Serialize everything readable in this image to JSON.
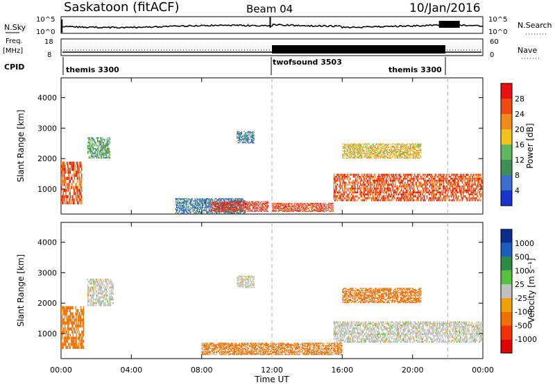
{
  "header": {
    "title": "Saskatoon (fitACF)",
    "beam": "Beam 04",
    "date": "10/Jan/2016"
  },
  "sky_panel": {
    "left_label": "N.Sky",
    "left_ticks": [
      "10^5",
      "10^0"
    ],
    "right_ticks": [
      "10^5",
      "10^0"
    ],
    "right_label": "N.Search",
    "right_legend_line": "dotted"
  },
  "freq_panel": {
    "left_label_line1": "Freq.",
    "left_label_line2": "[MHz]",
    "left_ticks": [
      "18",
      "8"
    ],
    "right_ticks": [
      "60",
      "0"
    ],
    "right_label": "Nave",
    "right_legend_line": "dotted"
  },
  "cpid": {
    "label": "CPID",
    "segments": [
      {
        "name": "themis 3300",
        "start_hour": 0,
        "end_hour": 12
      },
      {
        "name": "twofsound 3503",
        "start_hour": 12,
        "end_hour": 22
      },
      {
        "name": "themis 3300",
        "start_hour": 22,
        "end_hour": 24
      }
    ]
  },
  "colors": {
    "power_scale": [
      "#1a33cc",
      "#3a6fd0",
      "#3f8f55",
      "#5fb65f",
      "#f2c21a",
      "#f28a1a",
      "#f04a10",
      "#e81010"
    ],
    "velocity_scale": [
      "#0a2c8c",
      "#1a5cc0",
      "#2e8a3e",
      "#55c040",
      "#c0c0c0",
      "#f0a000",
      "#f07000",
      "#f03000",
      "#e00000"
    ],
    "noise_line": "#000000",
    "dashed_marker": "#b0b0b0"
  },
  "chart_data": [
    {
      "type": "heatmap",
      "name": "Power range-time intensity",
      "xlabel": "",
      "ylabel": "Slant Range [km]",
      "ylim": [
        180,
        4650
      ],
      "yticks": [
        "1000",
        "2000",
        "3000",
        "4000"
      ],
      "colorbar_label": "Power [dB]",
      "colorbar_ticks": [
        "4",
        "8",
        "12",
        "16",
        "20",
        "24",
        "28"
      ],
      "clim": [
        0,
        32
      ],
      "grid": false,
      "regions": [
        {
          "t": [
            0.0,
            1.2
          ],
          "r": [
            500,
            1900
          ],
          "level": 0.85
        },
        {
          "t": [
            1.5,
            2.8
          ],
          "r": [
            2000,
            2700
          ],
          "level": 0.35
        },
        {
          "t": [
            6.5,
            10.5
          ],
          "r": [
            200,
            700
          ],
          "level": 0.2
        },
        {
          "t": [
            8.5,
            11.8
          ],
          "r": [
            250,
            600
          ],
          "level": 0.95
        },
        {
          "t": [
            12.0,
            15.5
          ],
          "r": [
            250,
            550
          ],
          "level": 0.9
        },
        {
          "t": [
            15.5,
            24.0
          ],
          "r": [
            600,
            1500
          ],
          "level": 0.85
        },
        {
          "t": [
            16.0,
            20.5
          ],
          "r": [
            2000,
            2500
          ],
          "level": 0.6
        },
        {
          "t": [
            10.0,
            11.0
          ],
          "r": [
            2500,
            2900
          ],
          "level": 0.2
        }
      ]
    },
    {
      "type": "heatmap",
      "name": "Line-of-sight velocity range-time intensity",
      "xlabel": "Time UT",
      "ylabel": "Slant Range [km]",
      "ylim": [
        180,
        4650
      ],
      "yticks": [
        "1000",
        "2000",
        "3000",
        "4000"
      ],
      "xticks": [
        "00:00",
        "04:00",
        "08:00",
        "12:00",
        "16:00",
        "20:00",
        "00:00"
      ],
      "colorbar_label": "Velocity [m s⁻¹]",
      "colorbar_ticks": [
        "1000",
        "500",
        "100",
        "25",
        "-25",
        "-100",
        "-500",
        "-1000"
      ],
      "clim": [
        -1000,
        1000
      ],
      "grid": false,
      "regions": [
        {
          "t": [
            0.0,
            1.3
          ],
          "r": [
            500,
            1900
          ],
          "level": -300
        },
        {
          "t": [
            1.5,
            3.0
          ],
          "r": [
            1900,
            2800
          ],
          "level": 0
        },
        {
          "t": [
            8.0,
            12.0
          ],
          "r": [
            300,
            700
          ],
          "level": -150
        },
        {
          "t": [
            12.0,
            16.0
          ],
          "r": [
            300,
            700
          ],
          "level": -150
        },
        {
          "t": [
            15.5,
            24.0
          ],
          "r": [
            700,
            1400
          ],
          "level": 0
        },
        {
          "t": [
            16.0,
            20.5
          ],
          "r": [
            2000,
            2500
          ],
          "level": -400
        },
        {
          "t": [
            10.0,
            11.0
          ],
          "r": [
            2500,
            2900
          ],
          "level": 0
        }
      ]
    }
  ],
  "markers": {
    "dashed_hours": [
      12,
      22
    ]
  }
}
